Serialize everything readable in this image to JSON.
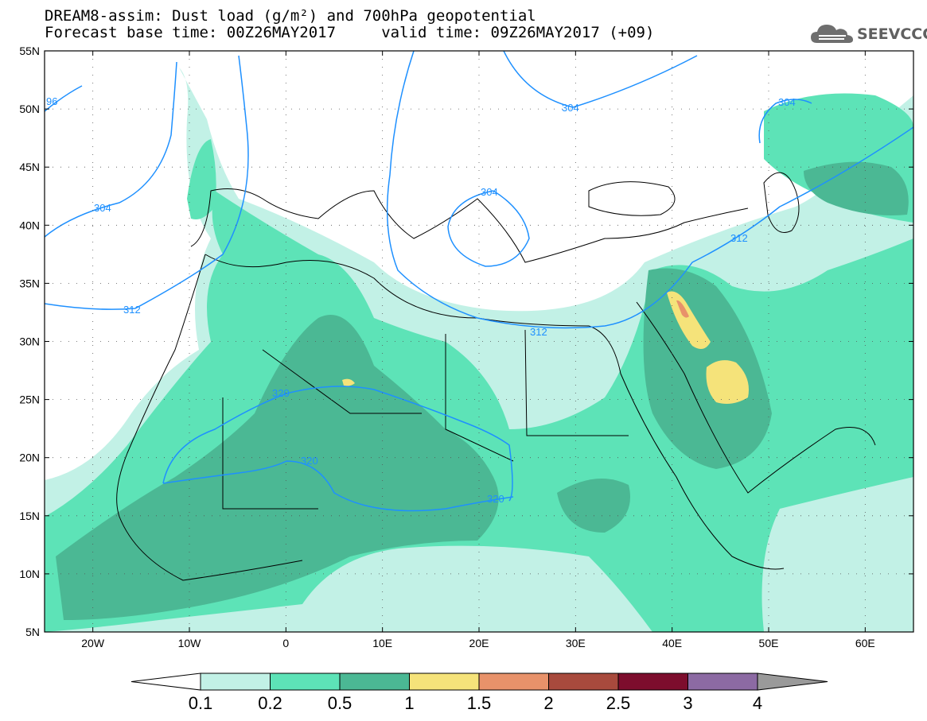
{
  "title": {
    "line1": "DREAM8-assim: Dust load (g/m²) and 700hPa geopotential",
    "line2": "Forecast base time: 00Z26MAY2017     valid time: 09Z26MAY2017 (+09)"
  },
  "logo": {
    "text": "SEEVCCC",
    "icon": "cloud-icon"
  },
  "map": {
    "lon_ticks": [
      "20W",
      "10W",
      "0",
      "10E",
      "20E",
      "30E",
      "40E",
      "50E",
      "60E"
    ],
    "lat_ticks": [
      "55N",
      "50N",
      "45N",
      "40N",
      "35N",
      "30N",
      "25N",
      "20N",
      "15N",
      "10N",
      "5N"
    ],
    "extent": {
      "lon": [
        -25,
        65
      ],
      "lat": [
        5,
        55
      ]
    },
    "contour_labels": [
      "96",
      "304",
      "312",
      "304",
      "304",
      "312",
      "312",
      "320",
      "320",
      "320",
      "304"
    ],
    "colors": {
      "contour": "#1e90ff",
      "coast": "#000000"
    }
  },
  "colorbar": {
    "levels": [
      "0.1",
      "0.2",
      "0.5",
      "1",
      "1.5",
      "2",
      "2.5",
      "3",
      "4"
    ],
    "colors": [
      "#c2f1e6",
      "#5de3b7",
      "#4bb894",
      "#f5e37a",
      "#e8926a",
      "#a84a3d",
      "#7d0d2d",
      "#8c6aa3",
      "#9a9a9a"
    ]
  }
}
